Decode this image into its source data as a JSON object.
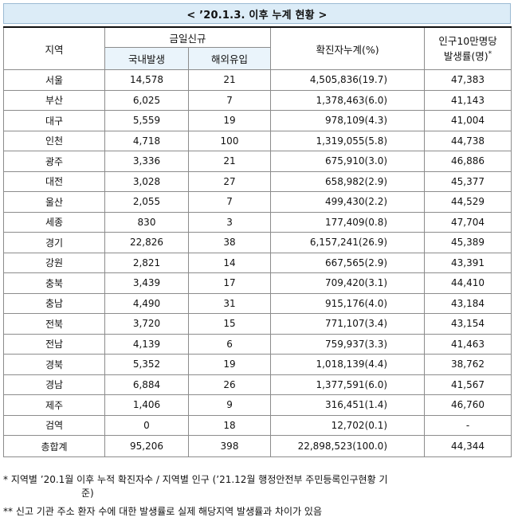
{
  "title": "< ’20.1.3. 이후 누계 현황 >",
  "headers": {
    "region": "지역",
    "today_new": "금일신규",
    "domestic": "국내발생",
    "overseas": "해외유입",
    "cumulative": "확진자누계(%)",
    "rate_line1": "인구10만명당",
    "rate_line2": "발생률(명)",
    "rate_mark": "*"
  },
  "rows": [
    {
      "region": "서울",
      "domestic": "14,578",
      "overseas": "21",
      "cumulative": "4,505,836(19.7)",
      "rate": "47,383"
    },
    {
      "region": "부산",
      "domestic": "6,025",
      "overseas": "7",
      "cumulative": "1,378,463(6.0)",
      "rate": "41,143"
    },
    {
      "region": "대구",
      "domestic": "5,559",
      "overseas": "19",
      "cumulative": "978,109(4.3)",
      "rate": "41,004"
    },
    {
      "region": "인천",
      "domestic": "4,718",
      "overseas": "100",
      "cumulative": "1,319,055(5.8)",
      "rate": "44,738"
    },
    {
      "region": "광주",
      "domestic": "3,336",
      "overseas": "21",
      "cumulative": "675,910(3.0)",
      "rate": "46,886"
    },
    {
      "region": "대전",
      "domestic": "3,028",
      "overseas": "27",
      "cumulative": "658,982(2.9)",
      "rate": "45,377"
    },
    {
      "region": "울산",
      "domestic": "2,055",
      "overseas": "7",
      "cumulative": "499,430(2.2)",
      "rate": "44,529"
    },
    {
      "region": "세종",
      "domestic": "830",
      "overseas": "3",
      "cumulative": "177,409(0.8)",
      "rate": "47,704"
    },
    {
      "region": "경기",
      "domestic": "22,826",
      "overseas": "38",
      "cumulative": "6,157,241(26.9)",
      "rate": "45,389"
    },
    {
      "region": "강원",
      "domestic": "2,821",
      "overseas": "14",
      "cumulative": "667,565(2.9)",
      "rate": "43,391"
    },
    {
      "region": "충북",
      "domestic": "3,439",
      "overseas": "17",
      "cumulative": "709,420(3.1)",
      "rate": "44,410"
    },
    {
      "region": "충남",
      "domestic": "4,490",
      "overseas": "31",
      "cumulative": "915,176(4.0)",
      "rate": "43,184"
    },
    {
      "region": "전북",
      "domestic": "3,720",
      "overseas": "15",
      "cumulative": "771,107(3.4)",
      "rate": "43,154"
    },
    {
      "region": "전남",
      "domestic": "4,139",
      "overseas": "6",
      "cumulative": "759,937(3.3)",
      "rate": "41,463"
    },
    {
      "region": "경북",
      "domestic": "5,352",
      "overseas": "19",
      "cumulative": "1,018,139(4.4)",
      "rate": "38,762"
    },
    {
      "region": "경남",
      "domestic": "6,884",
      "overseas": "26",
      "cumulative": "1,377,591(6.0)",
      "rate": "41,567"
    },
    {
      "region": "제주",
      "domestic": "1,406",
      "overseas": "9",
      "cumulative": "316,451(1.4)",
      "rate": "46,760"
    },
    {
      "region": "검역",
      "domestic": "0",
      "overseas": "18",
      "cumulative": "12,702(0.1)",
      "rate": "-"
    },
    {
      "region": "총합계",
      "domestic": "95,206",
      "overseas": "398",
      "cumulative": "22,898,523(100.0)",
      "rate": "44,344"
    }
  ],
  "footnotes": {
    "note1_a": "* 지역별 ’20.1월 이후 누적 확진자수 / 지역별 인구 (’21.12월 행정안전부 주민등록인구현황 기",
    "note1_b": "준)",
    "note2": "** 신고 기관 주소 환자 수에 대한 발생률로 실제 해당지역 발생률과 차이가 있음"
  }
}
